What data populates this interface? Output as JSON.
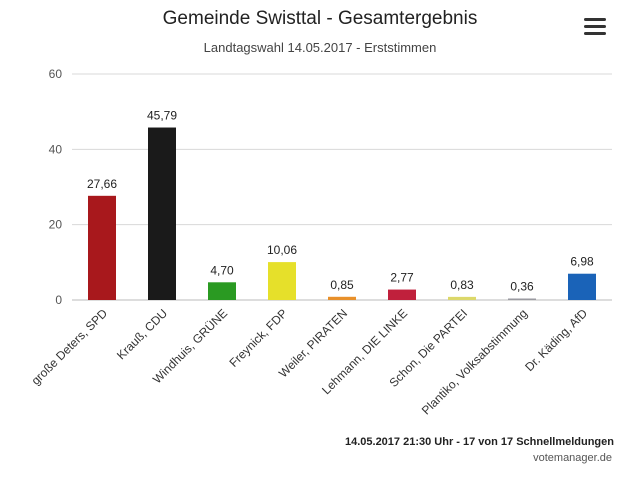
{
  "header": {
    "title": "Gemeinde Swisttal - Gesamtergebnis",
    "subtitle": "Landtagswahl 14.05.2017 - Erststimmen",
    "menu_icon": "hamburger-menu-icon"
  },
  "footer": {
    "status": "14.05.2017 21:30 Uhr - 17 von 17 Schnellmeldungen",
    "credit": "votemanager.de"
  },
  "chart_data": {
    "type": "bar",
    "title": "Gemeinde Swisttal - Gesamtergebnis",
    "subtitle": "Landtagswahl 14.05.2017 - Erststimmen",
    "xlabel": "",
    "ylabel": "",
    "ylim": [
      0,
      60
    ],
    "yticks": [
      "60",
      "40",
      "20",
      "0"
    ],
    "yticks_values": [
      60,
      40,
      20,
      0
    ],
    "grid": true,
    "categories": [
      "große Deters, SPD",
      "Krauß, CDU",
      "Windhuis, GRÜNE",
      "Freynick, FDP",
      "Weiler, PIRATEN",
      "Lehmann, DIE LINKE",
      "Schon, Die PARTEI",
      "Plantiko, Volksabstimmung",
      "Dr. Käding, AfD"
    ],
    "values": [
      27.66,
      45.79,
      4.7,
      10.06,
      0.85,
      2.77,
      0.83,
      0.36,
      6.98
    ],
    "value_labels": [
      "27,66",
      "45,79",
      "4,70",
      "10,06",
      "0,85",
      "2,77",
      "0,83",
      "0,36",
      "6,98"
    ],
    "colors": [
      "#a8181c",
      "#1a1a1a",
      "#2a9a22",
      "#e6e02a",
      "#e8902a",
      "#c0203c",
      "#dcd86a",
      "#9a9aa0",
      "#1a63b8"
    ]
  }
}
